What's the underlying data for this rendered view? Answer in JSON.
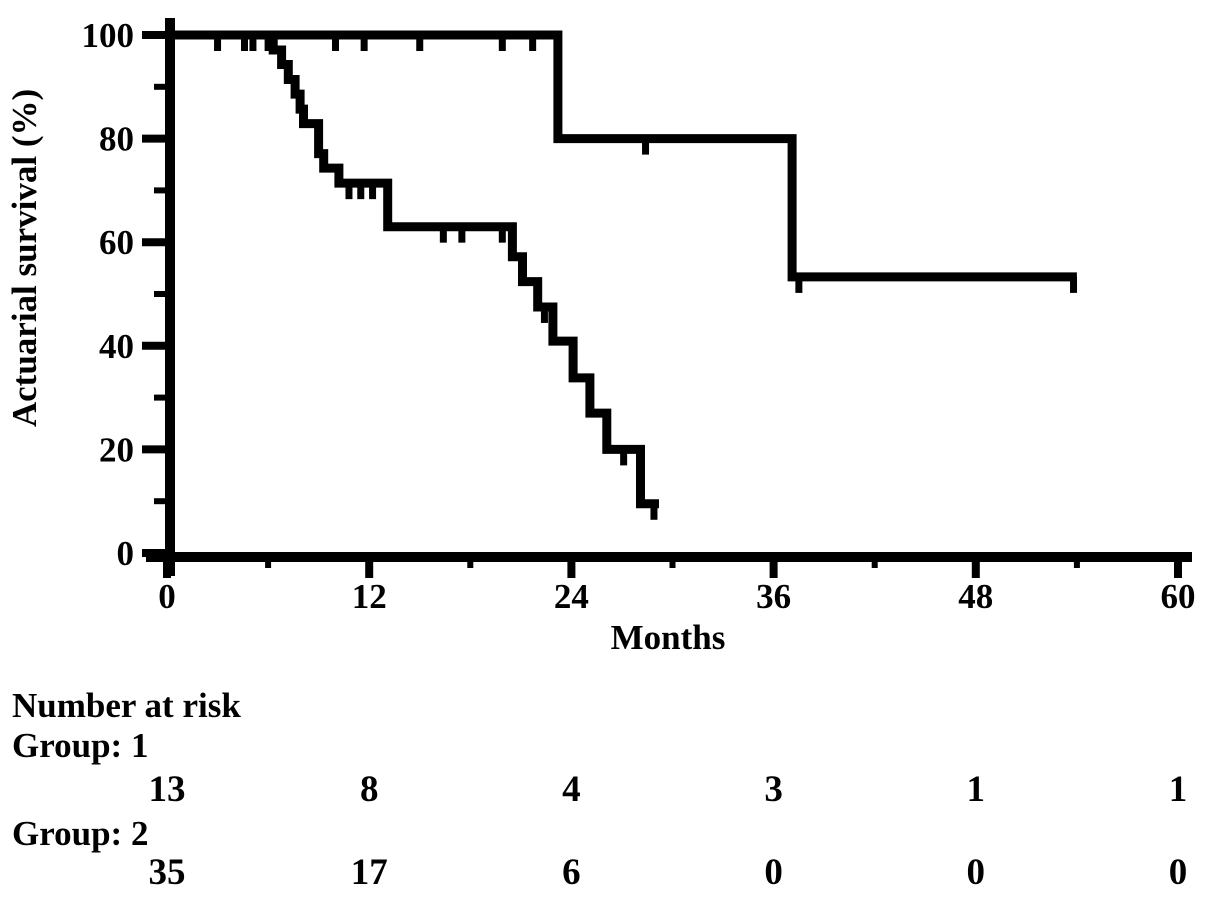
{
  "figure": {
    "background": "#ffffff",
    "ink_color": "#000000"
  },
  "chart_data": {
    "type": "line",
    "subtype": "kaplan-meier-step",
    "title": "",
    "xlabel": "Months",
    "ylabel": "Actuarial survival (%)",
    "xlim": [
      0,
      60
    ],
    "ylim": [
      0,
      100
    ],
    "x_major_ticks": [
      0,
      12,
      24,
      36,
      48,
      60
    ],
    "x_minor_ticks": [
      6,
      18,
      30,
      42,
      54
    ],
    "y_major_ticks": [
      100,
      80,
      60,
      40,
      20,
      0
    ],
    "y_minor_ticks": [
      90,
      70,
      50,
      30,
      10
    ],
    "grid": false,
    "legend": "none",
    "series": [
      {
        "name": "Group 1",
        "points": [
          [
            0,
            100
          ],
          [
            23.2,
            80
          ],
          [
            37.1,
            53.3
          ]
        ],
        "end_month": 54.0,
        "censors": [
          [
            3.0,
            100
          ],
          [
            4.6,
            100
          ],
          [
            5.1,
            100
          ],
          [
            6.0,
            100
          ],
          [
            10.0,
            100
          ],
          [
            11.7,
            100
          ],
          [
            15.0,
            100
          ],
          [
            19.9,
            100
          ],
          [
            21.7,
            100
          ],
          [
            28.4,
            80
          ],
          [
            37.5,
            53.3
          ],
          [
            53.8,
            53.3
          ]
        ]
      },
      {
        "name": "Group 2",
        "points": [
          [
            0,
            100
          ],
          [
            6.3,
            97.1
          ],
          [
            6.8,
            94.3
          ],
          [
            7.2,
            91.4
          ],
          [
            7.6,
            88.6
          ],
          [
            7.9,
            85.7
          ],
          [
            8.1,
            82.9
          ],
          [
            9.0,
            77.1
          ],
          [
            9.3,
            74.3
          ],
          [
            10.2,
            71.4
          ],
          [
            13.1,
            63.0
          ],
          [
            20.5,
            57.2
          ],
          [
            21.1,
            52.4
          ],
          [
            22.0,
            47.5
          ],
          [
            22.9,
            40.9
          ],
          [
            24.1,
            33.8
          ],
          [
            25.1,
            27.0
          ],
          [
            26.1,
            20.0
          ],
          [
            28.1,
            9.5
          ]
        ],
        "end_month": 29.2,
        "censors": [
          [
            10.8,
            71.4
          ],
          [
            11.5,
            71.4
          ],
          [
            12.2,
            71.4
          ],
          [
            16.4,
            63.0
          ],
          [
            17.5,
            63.0
          ],
          [
            19.9,
            63.0
          ],
          [
            22.4,
            47.5
          ],
          [
            27.1,
            20.0
          ],
          [
            28.9,
            9.5
          ]
        ]
      }
    ]
  },
  "risk_table": {
    "heading": "Number at risk",
    "columns_months": [
      0,
      12,
      24,
      36,
      48,
      60
    ],
    "groups": [
      {
        "label": "Group: 1",
        "counts": [
          "13",
          "8",
          "4",
          "3",
          "1",
          "1"
        ]
      },
      {
        "label": "Group: 2",
        "counts": [
          "35",
          "17",
          "6",
          "0",
          "0",
          "0"
        ]
      }
    ]
  }
}
